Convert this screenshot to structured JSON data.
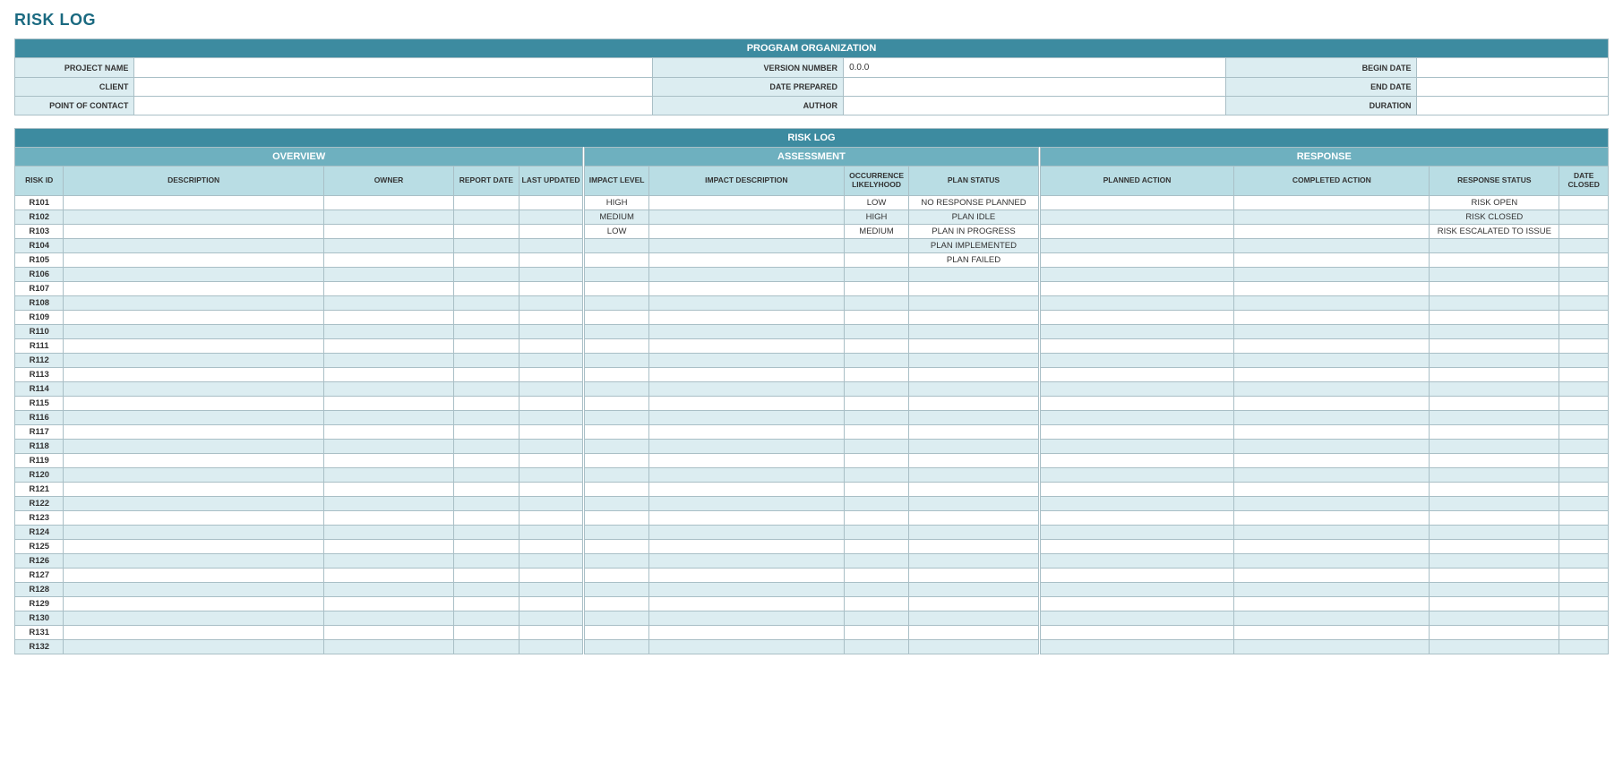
{
  "colors": {
    "title_text": "#1b6a81",
    "header_dark": "#3d8ba0",
    "header_mid": "#6eb0bf",
    "header_light": "#b9dde4",
    "label_bg": "#dcedf1",
    "row_even_bg": "#dcedf1",
    "row_odd_bg": "#ffffff",
    "value_bg": "#ffffff",
    "border": "#a9bfc6"
  },
  "page_title": "RISK LOG",
  "org": {
    "title": "PROGRAM ORGANIZATION",
    "rows": [
      [
        {
          "label": "PROJECT NAME",
          "value": ""
        },
        {
          "label": "VERSION NUMBER",
          "value": "0.0.0"
        },
        {
          "label": "BEGIN DATE",
          "value": ""
        }
      ],
      [
        {
          "label": "CLIENT",
          "value": ""
        },
        {
          "label": "DATE PREPARED",
          "value": ""
        },
        {
          "label": "END DATE",
          "value": ""
        }
      ],
      [
        {
          "label": "POINT OF CONTACT",
          "value": ""
        },
        {
          "label": "AUTHOR",
          "value": ""
        },
        {
          "label": "DURATION",
          "value": ""
        }
      ]
    ],
    "col_widths_pct": [
      7.5,
      32.5,
      12,
      24,
      12,
      12
    ]
  },
  "log": {
    "title": "RISK LOG",
    "sections": [
      "OVERVIEW",
      "ASSESSMENT",
      "RESPONSE"
    ],
    "section_spans": [
      5,
      4,
      4
    ],
    "columns": [
      "RISK ID",
      "DESCRIPTION",
      "OWNER",
      "REPORT DATE",
      "LAST UPDATED",
      "IMPACT LEVEL",
      "IMPACT DESCRIPTION",
      "OCCURRENCE LIKELYHOOD",
      "PLAN STATUS",
      "PLANNED ACTION",
      "COMPLETED ACTION",
      "RESPONSE STATUS",
      "DATE CLOSED"
    ],
    "col_widths_pct": [
      3,
      16,
      8,
      4,
      4,
      4,
      12,
      4,
      8,
      12,
      12,
      8,
      3
    ],
    "row_count": 32,
    "rows": [
      {
        "id": "R101",
        "impact_level": "HIGH",
        "occurrence": "LOW",
        "plan_status": "NO RESPONSE PLANNED",
        "response_status": "RISK OPEN"
      },
      {
        "id": "R102",
        "impact_level": "MEDIUM",
        "occurrence": "HIGH",
        "plan_status": "PLAN IDLE",
        "response_status": "RISK CLOSED"
      },
      {
        "id": "R103",
        "impact_level": "LOW",
        "occurrence": "MEDIUM",
        "plan_status": "PLAN IN PROGRESS",
        "response_status": "RISK ESCALATED TO ISSUE"
      },
      {
        "id": "R104",
        "plan_status": "PLAN IMPLEMENTED"
      },
      {
        "id": "R105",
        "plan_status": "PLAN FAILED"
      },
      {
        "id": "R106"
      },
      {
        "id": "R107"
      },
      {
        "id": "R108"
      },
      {
        "id": "R109"
      },
      {
        "id": "R110"
      },
      {
        "id": "R111"
      },
      {
        "id": "R112"
      },
      {
        "id": "R113"
      },
      {
        "id": "R114"
      },
      {
        "id": "R115"
      },
      {
        "id": "R116"
      },
      {
        "id": "R117"
      },
      {
        "id": "R118"
      },
      {
        "id": "R119"
      },
      {
        "id": "R120"
      },
      {
        "id": "R121"
      },
      {
        "id": "R122"
      },
      {
        "id": "R123"
      },
      {
        "id": "R124"
      },
      {
        "id": "R125"
      },
      {
        "id": "R126"
      },
      {
        "id": "R127"
      },
      {
        "id": "R128"
      },
      {
        "id": "R129"
      },
      {
        "id": "R130"
      },
      {
        "id": "R131"
      },
      {
        "id": "R132"
      }
    ]
  }
}
